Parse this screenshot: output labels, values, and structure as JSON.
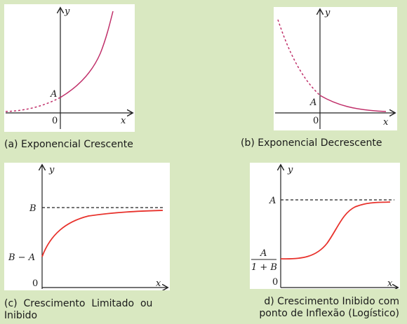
{
  "figures": {
    "a": {
      "caption": "(a) Exponencial Crescente",
      "y_label": "y",
      "x_label": "x",
      "origin_label": "0",
      "intercept_label": "A"
    },
    "b": {
      "caption": "(b) Exponencial Decrescente",
      "y_label": "y",
      "x_label": "x",
      "origin_label": "0",
      "intercept_label": "A"
    },
    "c": {
      "caption_line1": "(c)  Crescimento  Limitado  ou",
      "caption_line2": "Inibido",
      "y_label": "y",
      "x_label": "x",
      "origin_label": "0",
      "asymptote_label": "B",
      "intercept_label": "B − A"
    },
    "d": {
      "caption_line1": "d) Crescimento Inibido com",
      "caption_line2": "ponto de Inflexão (Logístico)",
      "y_label": "y",
      "x_label": "x",
      "origin_label": "0",
      "asymptote_label": "A",
      "intercept_numerator": "A",
      "intercept_denominator": "1 + B"
    }
  },
  "colors": {
    "curve": "#c0306a",
    "curve_red": "#e8322c",
    "axis": "#222222",
    "background": "#d9e8c1"
  }
}
